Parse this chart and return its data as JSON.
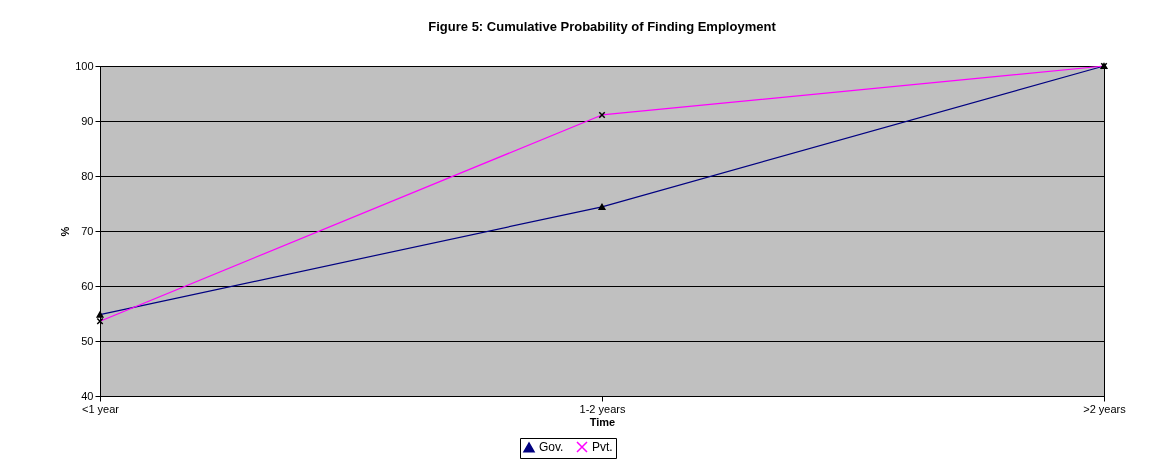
{
  "chart_data": {
    "type": "line",
    "title": "Figure 5:  Cumulative Probability of Finding Employment",
    "xlabel": "Time",
    "ylabel": "%",
    "categories": [
      "<1 year",
      "1-2 years",
      ">2 years"
    ],
    "series": [
      {
        "name": "Gov.",
        "color": "#000080",
        "marker": "triangle",
        "values": [
          54.8,
          74.4,
          100
        ]
      },
      {
        "name": "Pvt.",
        "color": "#ff00ff",
        "marker": "cross",
        "values": [
          53.6,
          91.1,
          100
        ]
      }
    ],
    "ylim": [
      40,
      100
    ],
    "yticks": [
      40,
      50,
      60,
      70,
      80,
      90,
      100
    ],
    "grid": "y",
    "legend": "bottom"
  }
}
